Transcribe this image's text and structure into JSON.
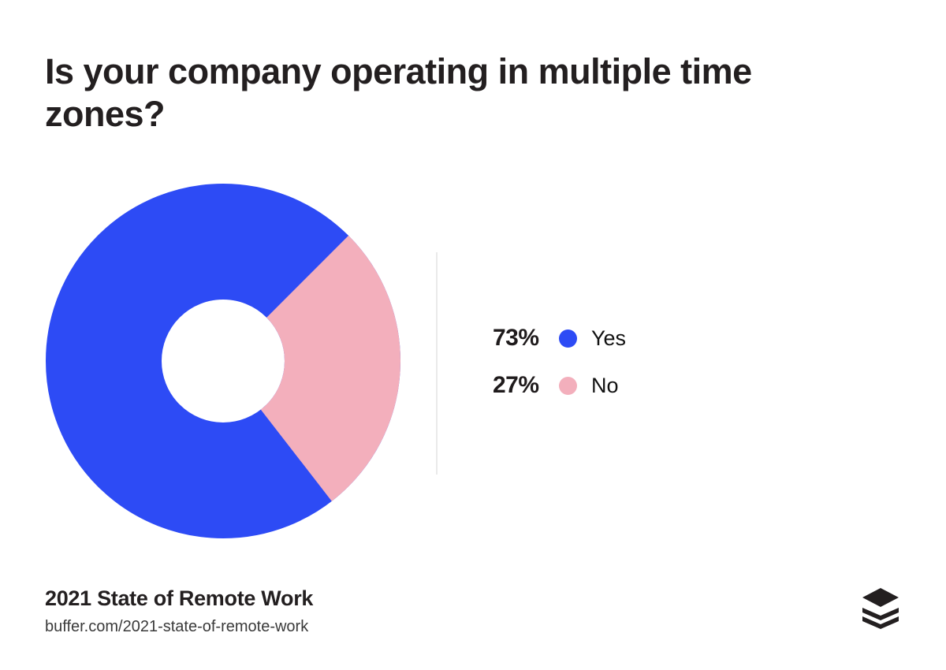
{
  "title": "Is your company operating in multiple time\nzones?",
  "chart_data": {
    "type": "pie",
    "subtype": "donut",
    "title": "Is your company operating in multiple time zones?",
    "categories": [
      "Yes",
      "No"
    ],
    "values": [
      73,
      27
    ],
    "unit": "%",
    "colors": {
      "Yes": "#2D4BF5",
      "No": "#F3AFBC"
    },
    "start_angle_deg": 45,
    "legend_position": "right",
    "hole_ratio": 0.35
  },
  "legend": {
    "items": [
      {
        "pct": "73%",
        "label": "Yes",
        "color_key": "Yes"
      },
      {
        "pct": "27%",
        "label": "No",
        "color_key": "No"
      }
    ]
  },
  "footer": {
    "source_title": "2021 State of Remote Work",
    "source_url": "buffer.com/2021-state-of-remote-work"
  },
  "logo": {
    "name": "buffer-logo",
    "color": "#231F20"
  },
  "styles": {
    "divider_color": "#EAEAEA",
    "title_color": "#231F20",
    "background": "#FFFFFF"
  }
}
